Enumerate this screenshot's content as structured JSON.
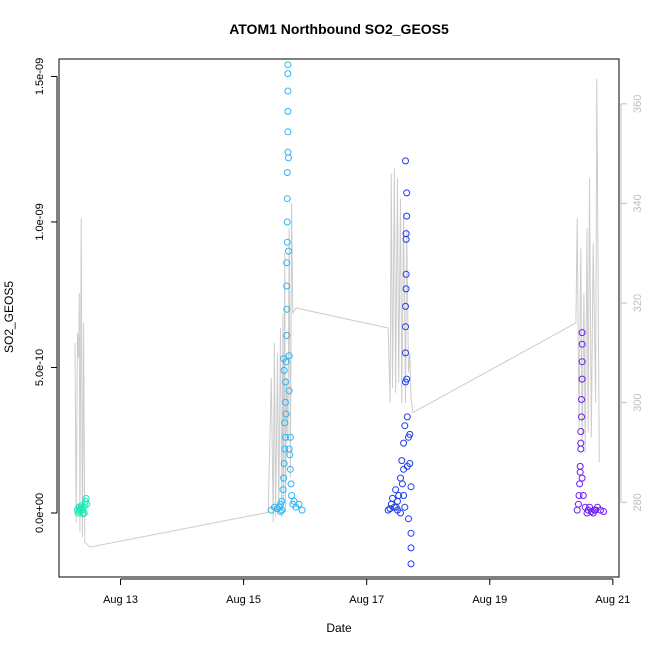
{
  "colors": {
    "background": "#ffffff",
    "axis": "#000000",
    "right_axis": "#bfbfbf",
    "secondary_line": "#cccccc",
    "segment_1": "#1de9b6",
    "segment_2": "#29b6f6",
    "segment_3": "#1e3cf0",
    "segment_4": "#6a1ef0"
  },
  "chart_data": {
    "type": "scatter",
    "title": "ATOM1 Northbound SO2_GEOS5",
    "xlabel": "Date",
    "ylabel": "SO2_GEOS5",
    "x_unit": "days in August 2016",
    "xlim": [
      12.0,
      21.1
    ],
    "ylim": [
      -2.2e-10,
      1.56e-09
    ],
    "x_ticks": [
      13,
      15,
      17,
      19,
      21
    ],
    "x_tick_labels": [
      "Aug 13",
      "Aug 15",
      "Aug 17",
      "Aug 19",
      "Aug 21"
    ],
    "y_ticks": [
      0,
      5e-10,
      1e-09,
      1.5e-09
    ],
    "y_tick_labels": [
      "0.0e+00",
      "5.0e-10",
      "1.0e-09",
      "1.5e-09"
    ],
    "right_axis": {
      "label": "",
      "ylim": [
        265,
        369
      ],
      "ticks": [
        280,
        300,
        320,
        340,
        360
      ],
      "tick_labels": [
        "280",
        "300",
        "320",
        "340",
        "360"
      ]
    },
    "grid": false,
    "legend": "none",
    "series": [
      {
        "color": "#1de9b6",
        "x_range": [
          12.3,
          12.45
        ],
        "points": [
          [
            12.3,
            1e-11
          ],
          [
            12.32,
            2e-11
          ],
          [
            12.34,
            1.5e-11
          ],
          [
            12.36,
            2.5e-11
          ],
          [
            12.38,
            1e-11
          ],
          [
            12.4,
            2e-11
          ],
          [
            12.42,
            3e-11
          ],
          [
            12.43,
            4e-11
          ],
          [
            12.44,
            5e-11
          ],
          [
            12.45,
            3e-11
          ],
          [
            12.31,
            0
          ],
          [
            12.35,
            1e-11
          ],
          [
            12.39,
            -2e-12
          ],
          [
            12.41,
            0
          ],
          [
            12.37,
            1.8e-11
          ],
          [
            12.33,
            5e-12
          ]
        ]
      },
      {
        "color": "#29b6f6",
        "x_range": [
          15.4,
          15.95
        ],
        "points": [
          [
            15.45,
            1e-11
          ],
          [
            15.5,
            2e-11
          ],
          [
            15.55,
            1.5e-11
          ],
          [
            15.6,
            5e-12
          ],
          [
            15.62,
            4e-11
          ],
          [
            15.64,
            8e-11
          ],
          [
            15.65,
            1.2e-10
          ],
          [
            15.66,
            1.7e-10
          ],
          [
            15.67,
            2.2e-10
          ],
          [
            15.67,
            3.1e-10
          ],
          [
            15.68,
            3.8e-10
          ],
          [
            15.68,
            4.5e-10
          ],
          [
            15.69,
            5.2e-10
          ],
          [
            15.7,
            6.1e-10
          ],
          [
            15.7,
            7e-10
          ],
          [
            15.7,
            7.8e-10
          ],
          [
            15.7,
            8.6e-10
          ],
          [
            15.71,
            9.3e-10
          ],
          [
            15.71,
            1e-09
          ],
          [
            15.71,
            1.08e-09
          ],
          [
            15.71,
            1.17e-09
          ],
          [
            15.72,
            1.24e-09
          ],
          [
            15.72,
            1.31e-09
          ],
          [
            15.72,
            1.38e-09
          ],
          [
            15.72,
            1.45e-09
          ],
          [
            15.72,
            1.51e-09
          ],
          [
            15.72,
            1.54e-09
          ],
          [
            15.73,
            1.22e-09
          ],
          [
            15.73,
            9e-10
          ],
          [
            15.74,
            5.4e-10
          ],
          [
            15.74,
            4.2e-10
          ],
          [
            15.75,
            2e-10
          ],
          [
            15.76,
            1.5e-10
          ],
          [
            15.77,
            1e-10
          ],
          [
            15.78,
            6e-11
          ],
          [
            15.8,
            3e-11
          ],
          [
            15.82,
            4e-11
          ],
          [
            15.85,
            2e-11
          ],
          [
            15.9,
            3e-11
          ],
          [
            15.95,
            1e-11
          ],
          [
            15.6,
            3e-11
          ],
          [
            15.65,
            5.3e-10
          ],
          [
            15.66,
            4.9e-10
          ],
          [
            15.68,
            2.6e-10
          ],
          [
            15.69,
            3.4e-10
          ],
          [
            15.74,
            2.2e-10
          ],
          [
            15.76,
            2.6e-10
          ],
          [
            15.62,
            1e-11
          ],
          [
            15.58,
            2e-11
          ]
        ]
      },
      {
        "color": "#1e3cf0",
        "x_range": [
          17.3,
          17.75
        ],
        "points": [
          [
            17.35,
            1e-11
          ],
          [
            17.4,
            3e-11
          ],
          [
            17.42,
            5e-11
          ],
          [
            17.45,
            2e-11
          ],
          [
            17.47,
            8e-11
          ],
          [
            17.5,
            4e-11
          ],
          [
            17.52,
            6e-11
          ],
          [
            17.55,
            1.2e-10
          ],
          [
            17.57,
            1.8e-10
          ],
          [
            17.6,
            1.5e-10
          ],
          [
            17.6,
            2.4e-10
          ],
          [
            17.62,
            3e-10
          ],
          [
            17.63,
            4.5e-10
          ],
          [
            17.63,
            5.5e-10
          ],
          [
            17.63,
            6.4e-10
          ],
          [
            17.63,
            7.1e-10
          ],
          [
            17.64,
            7.7e-10
          ],
          [
            17.64,
            8.2e-10
          ],
          [
            17.64,
            9.4e-10
          ],
          [
            17.64,
            9.6e-10
          ],
          [
            17.65,
            1.02e-09
          ],
          [
            17.65,
            1.1e-09
          ],
          [
            17.63,
            1.21e-09
          ],
          [
            17.65,
            4.6e-10
          ],
          [
            17.66,
            3.3e-10
          ],
          [
            17.68,
            2.6e-10
          ],
          [
            17.7,
            1.7e-10
          ],
          [
            17.72,
            9e-11
          ],
          [
            17.7,
            2.7e-10
          ],
          [
            17.72,
            -7e-11
          ],
          [
            17.72,
            -1.2e-10
          ],
          [
            17.72,
            -1.75e-10
          ],
          [
            17.68,
            -2e-11
          ],
          [
            17.58,
            1e-10
          ],
          [
            17.48,
            2e-11
          ],
          [
            17.38,
            1.5e-11
          ],
          [
            17.6,
            6e-11
          ],
          [
            17.62,
            2e-11
          ],
          [
            17.66,
            1.6e-10
          ],
          [
            17.55,
            0
          ],
          [
            17.5,
            1e-11
          ]
        ]
      },
      {
        "color": "#6a1ef0",
        "x_range": [
          20.4,
          20.85
        ],
        "points": [
          [
            20.42,
            1e-11
          ],
          [
            20.44,
            3e-11
          ],
          [
            20.45,
            6e-11
          ],
          [
            20.46,
            1e-10
          ],
          [
            20.47,
            1.6e-10
          ],
          [
            20.48,
            2.2e-10
          ],
          [
            20.48,
            2.8e-10
          ],
          [
            20.49,
            3.3e-10
          ],
          [
            20.49,
            3.9e-10
          ],
          [
            20.5,
            4.6e-10
          ],
          [
            20.5,
            5.2e-10
          ],
          [
            20.5,
            5.8e-10
          ],
          [
            20.5,
            6.2e-10
          ],
          [
            20.48,
            2.4e-10
          ],
          [
            20.47,
            1.4e-10
          ],
          [
            20.5,
            1.2e-10
          ],
          [
            20.52,
            6e-11
          ],
          [
            20.55,
            2e-11
          ],
          [
            20.6,
            1e-11
          ],
          [
            20.65,
            5e-12
          ],
          [
            20.7,
            1e-11
          ],
          [
            20.75,
            2e-11
          ],
          [
            20.8,
            1e-11
          ],
          [
            20.85,
            5e-12
          ],
          [
            20.58,
            0
          ],
          [
            20.62,
            2e-11
          ],
          [
            20.68,
            0
          ],
          [
            20.72,
            1e-11
          ]
        ]
      }
    ],
    "secondary_line": {
      "axis": "right",
      "color": "#cccccc",
      "points": [
        [
          12.26,
          312
        ],
        [
          12.28,
          276
        ],
        [
          12.3,
          314
        ],
        [
          12.32,
          309
        ],
        [
          12.33,
          322
        ],
        [
          12.34,
          274
        ],
        [
          12.36,
          337
        ],
        [
          12.38,
          273
        ],
        [
          12.4,
          316
        ],
        [
          12.42,
          272
        ],
        [
          12.5,
          271
        ],
        [
          15.4,
          278
        ],
        [
          15.45,
          305
        ],
        [
          15.48,
          276
        ],
        [
          15.5,
          312
        ],
        [
          15.52,
          277
        ],
        [
          15.55,
          310
        ],
        [
          15.57,
          278
        ],
        [
          15.6,
          315
        ],
        [
          15.62,
          277
        ],
        [
          15.64,
          318
        ],
        [
          15.65,
          279
        ],
        [
          15.67,
          330
        ],
        [
          15.68,
          278
        ],
        [
          15.7,
          305
        ],
        [
          15.72,
          292
        ],
        [
          15.74,
          335
        ],
        [
          15.76,
          285
        ],
        [
          15.78,
          340
        ],
        [
          15.8,
          318
        ],
        [
          15.85,
          319
        ],
        [
          17.35,
          315
        ],
        [
          17.38,
          300
        ],
        [
          17.4,
          346
        ],
        [
          17.42,
          303
        ],
        [
          17.45,
          347
        ],
        [
          17.47,
          302
        ],
        [
          17.5,
          345
        ],
        [
          17.52,
          304
        ],
        [
          17.55,
          341
        ],
        [
          17.57,
          300
        ],
        [
          17.6,
          338
        ],
        [
          17.63,
          300
        ],
        [
          17.65,
          335
        ],
        [
          17.68,
          306
        ],
        [
          17.7,
          310
        ],
        [
          17.72,
          301
        ],
        [
          17.75,
          298
        ],
        [
          20.4,
          316
        ],
        [
          20.42,
          337
        ],
        [
          20.45,
          295
        ],
        [
          20.48,
          331
        ],
        [
          20.5,
          292
        ],
        [
          20.53,
          322
        ],
        [
          20.55,
          290
        ],
        [
          20.58,
          335
        ],
        [
          20.6,
          294
        ],
        [
          20.62,
          345
        ],
        [
          20.65,
          293
        ],
        [
          20.68,
          332
        ],
        [
          20.72,
          300
        ],
        [
          20.74,
          365
        ],
        [
          20.78,
          288
        ]
      ]
    }
  }
}
